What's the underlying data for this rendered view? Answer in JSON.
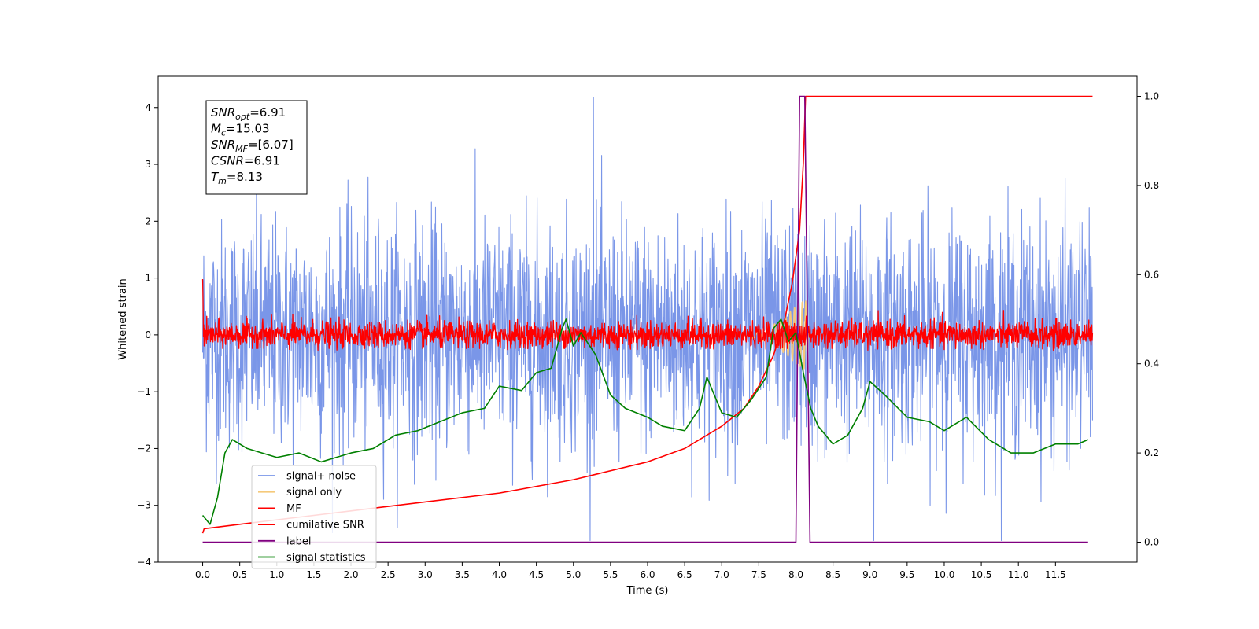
{
  "chart_data": {
    "type": "line",
    "title": "",
    "xlabel": "Time (s)",
    "ylabel": "Whitened strain",
    "xlim": [
      -0.6,
      12.6
    ],
    "ylim": [
      -4.0,
      4.55
    ],
    "y2lim": [
      -0.045,
      1.045
    ],
    "x_ticks": [
      0.0,
      0.5,
      1.0,
      1.5,
      2.0,
      2.5,
      3.0,
      3.5,
      4.0,
      4.5,
      5.0,
      5.5,
      6.0,
      6.5,
      7.0,
      7.5,
      8.0,
      8.5,
      9.0,
      9.5,
      10.0,
      10.5,
      11.0,
      11.5
    ],
    "x_tick_labels": [
      "0.0",
      "0.5",
      "1.0",
      "1.5",
      "2.0",
      "2.5",
      "3.0",
      "3.5",
      "4.0",
      "4.5",
      "5.0",
      "5.5",
      "6.0",
      "6.5",
      "7.0",
      "7.5",
      "8.0",
      "8.5",
      "9.0",
      "9.5",
      "10.0",
      "10.5",
      "11.0",
      "11.5"
    ],
    "y_ticks": [
      -4,
      -3,
      -2,
      -1,
      0,
      1,
      2,
      3,
      4
    ],
    "y_tick_labels": [
      "−4",
      "−3",
      "−2",
      "−1",
      "0",
      "1",
      "2",
      "3",
      "4"
    ],
    "y2_ticks": [
      0.0,
      0.2,
      0.4,
      0.6,
      0.8,
      1.0
    ],
    "y2_tick_labels": [
      "0.0",
      "0.2",
      "0.4",
      "0.6",
      "0.8",
      "1.0"
    ],
    "legend_position": "lower-left",
    "grid": false,
    "info_box": {
      "lines": [
        {
          "sym": "SNR",
          "sub": "opt",
          "rest": "=6.91"
        },
        {
          "sym": "M",
          "sub": "c",
          "rest": "=15.03"
        },
        {
          "sym": "SNR",
          "sub": "MF",
          "rest": "=[6.07]"
        },
        {
          "sym": "CSNR",
          "sub": "",
          "rest": "=6.91"
        },
        {
          "sym": "T",
          "sub": "m",
          "rest": "=8.13"
        }
      ]
    },
    "series": [
      {
        "name": "signal+ noise",
        "axis": "left",
        "color": "#7a96e8",
        "kind": "noise",
        "x_range": [
          0.0,
          12.0
        ],
        "sigma": 1.0,
        "peak_max": 4.18,
        "peak_min": -3.62
      },
      {
        "name": "signal only",
        "axis": "left",
        "color": "#f5c97a",
        "kind": "chirp",
        "x": [
          7.4,
          7.55,
          7.7,
          7.8,
          7.9,
          7.95,
          8.0,
          8.05,
          8.1,
          8.13,
          8.18
        ],
        "envelope": [
          0.05,
          0.1,
          0.18,
          0.28,
          0.38,
          0.45,
          0.5,
          0.55,
          0.6,
          0.62,
          0.0
        ]
      },
      {
        "name": "MF",
        "axis": "left",
        "color": "#ff0000",
        "kind": "noise",
        "x_range": [
          0.0,
          12.0
        ],
        "sigma": 0.12,
        "peak_max": 0.98,
        "peak_min": -0.3
      },
      {
        "name": "cumilative SNR",
        "axis": "right",
        "color": "#ff0000",
        "kind": "line",
        "x": [
          0.0,
          0.02,
          0.5,
          1.0,
          2.0,
          3.0,
          4.0,
          5.0,
          6.0,
          6.5,
          7.0,
          7.3,
          7.5,
          7.7,
          7.85,
          7.95,
          8.05,
          8.1,
          8.13,
          8.2,
          9.0,
          10.0,
          11.0,
          12.0
        ],
        "y": [
          0.02,
          0.03,
          0.04,
          0.05,
          0.07,
          0.09,
          0.11,
          0.14,
          0.18,
          0.21,
          0.26,
          0.3,
          0.35,
          0.42,
          0.5,
          0.58,
          0.7,
          0.85,
          1.0,
          1.0,
          1.0,
          1.0,
          1.0,
          1.0
        ]
      },
      {
        "name": "label",
        "axis": "right",
        "color": "#800080",
        "kind": "line",
        "x": [
          0.0,
          8.0,
          8.05,
          8.12,
          8.19,
          11.94
        ],
        "y": [
          0.0,
          0.0,
          1.0,
          1.0,
          0.0,
          0.0
        ]
      },
      {
        "name": "signal statistics",
        "axis": "right",
        "color": "#008000",
        "kind": "line",
        "x": [
          0.0,
          0.1,
          0.2,
          0.3,
          0.4,
          0.6,
          0.8,
          1.0,
          1.3,
          1.6,
          1.8,
          2.0,
          2.3,
          2.6,
          2.9,
          3.2,
          3.5,
          3.8,
          4.0,
          4.3,
          4.5,
          4.7,
          4.85,
          4.9,
          5.0,
          5.1,
          5.3,
          5.5,
          5.7,
          6.0,
          6.2,
          6.5,
          6.7,
          6.8,
          6.9,
          7.0,
          7.2,
          7.4,
          7.6,
          7.7,
          7.8,
          7.9,
          8.0,
          8.1,
          8.2,
          8.3,
          8.5,
          8.7,
          8.9,
          9.0,
          9.2,
          9.5,
          9.8,
          10.0,
          10.3,
          10.6,
          10.9,
          11.2,
          11.5,
          11.8,
          11.94
        ],
        "y": [
          0.06,
          0.04,
          0.1,
          0.2,
          0.23,
          0.21,
          0.2,
          0.19,
          0.2,
          0.18,
          0.19,
          0.2,
          0.21,
          0.24,
          0.25,
          0.27,
          0.29,
          0.3,
          0.35,
          0.34,
          0.38,
          0.39,
          0.48,
          0.5,
          0.44,
          0.47,
          0.42,
          0.33,
          0.3,
          0.28,
          0.26,
          0.25,
          0.3,
          0.37,
          0.33,
          0.29,
          0.28,
          0.32,
          0.37,
          0.48,
          0.5,
          0.45,
          0.47,
          0.38,
          0.3,
          0.26,
          0.22,
          0.24,
          0.3,
          0.36,
          0.33,
          0.28,
          0.27,
          0.25,
          0.28,
          0.23,
          0.2,
          0.2,
          0.22,
          0.22,
          0.23
        ]
      }
    ]
  }
}
